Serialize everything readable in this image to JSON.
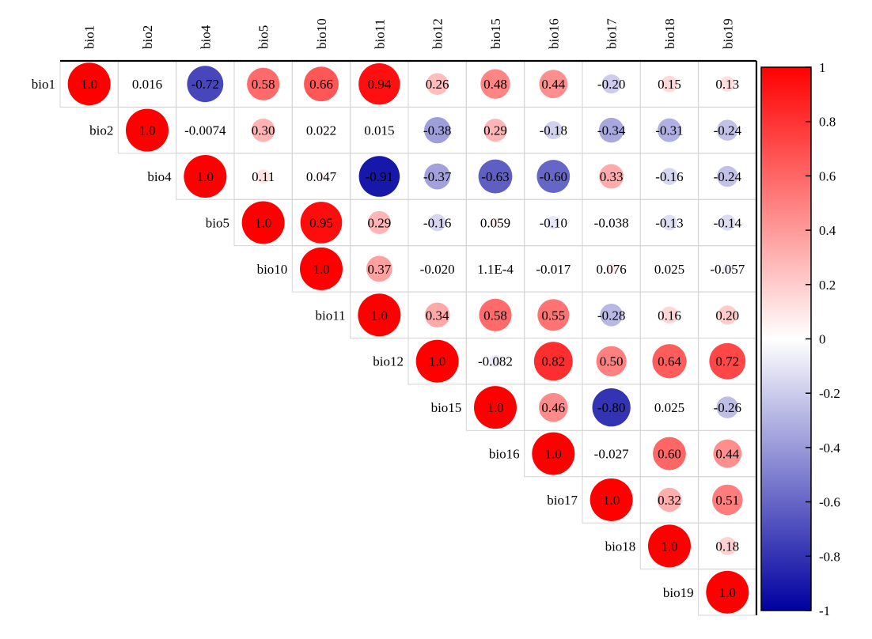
{
  "chart_data": {
    "type": "heatmap",
    "title": "",
    "xlabel": "",
    "ylabel": "",
    "variables": [
      "bio1",
      "bio2",
      "bio4",
      "bio5",
      "bio10",
      "bio11",
      "bio12",
      "bio15",
      "bio16",
      "bio17",
      "bio18",
      "bio19"
    ],
    "layout": "upper-triangle",
    "diagonal_labels": true,
    "circles_scale_with_magnitude": true,
    "cells": [
      {
        "row": "bio1",
        "col": "bio1",
        "value": 1.0,
        "label": "1.0"
      },
      {
        "row": "bio1",
        "col": "bio2",
        "value": 0.016,
        "label": "0.016"
      },
      {
        "row": "bio1",
        "col": "bio4",
        "value": -0.72,
        "label": "-0.72"
      },
      {
        "row": "bio1",
        "col": "bio5",
        "value": 0.58,
        "label": "0.58"
      },
      {
        "row": "bio1",
        "col": "bio10",
        "value": 0.66,
        "label": "0.66"
      },
      {
        "row": "bio1",
        "col": "bio11",
        "value": 0.94,
        "label": "0.94"
      },
      {
        "row": "bio1",
        "col": "bio12",
        "value": 0.26,
        "label": "0.26"
      },
      {
        "row": "bio1",
        "col": "bio15",
        "value": 0.48,
        "label": "0.48"
      },
      {
        "row": "bio1",
        "col": "bio16",
        "value": 0.44,
        "label": "0.44"
      },
      {
        "row": "bio1",
        "col": "bio17",
        "value": -0.2,
        "label": "-0.20"
      },
      {
        "row": "bio1",
        "col": "bio18",
        "value": 0.15,
        "label": "0.15"
      },
      {
        "row": "bio1",
        "col": "bio19",
        "value": 0.13,
        "label": "0.13"
      },
      {
        "row": "bio2",
        "col": "bio2",
        "value": 1.0,
        "label": "1.0"
      },
      {
        "row": "bio2",
        "col": "bio4",
        "value": -0.0074,
        "label": "-0.0074"
      },
      {
        "row": "bio2",
        "col": "bio5",
        "value": 0.3,
        "label": "0.30"
      },
      {
        "row": "bio2",
        "col": "bio10",
        "value": 0.022,
        "label": "0.022"
      },
      {
        "row": "bio2",
        "col": "bio11",
        "value": 0.015,
        "label": "0.015"
      },
      {
        "row": "bio2",
        "col": "bio12",
        "value": -0.38,
        "label": "-0.38"
      },
      {
        "row": "bio2",
        "col": "bio15",
        "value": 0.29,
        "label": "0.29"
      },
      {
        "row": "bio2",
        "col": "bio16",
        "value": -0.18,
        "label": "-0.18"
      },
      {
        "row": "bio2",
        "col": "bio17",
        "value": -0.34,
        "label": "-0.34"
      },
      {
        "row": "bio2",
        "col": "bio18",
        "value": -0.31,
        "label": "-0.31"
      },
      {
        "row": "bio2",
        "col": "bio19",
        "value": -0.24,
        "label": "-0.24"
      },
      {
        "row": "bio4",
        "col": "bio4",
        "value": 1.0,
        "label": "1.0"
      },
      {
        "row": "bio4",
        "col": "bio5",
        "value": 0.11,
        "label": "0.11"
      },
      {
        "row": "bio4",
        "col": "bio10",
        "value": 0.047,
        "label": "0.047"
      },
      {
        "row": "bio4",
        "col": "bio11",
        "value": -0.91,
        "label": "-0.91"
      },
      {
        "row": "bio4",
        "col": "bio12",
        "value": -0.37,
        "label": "-0.37"
      },
      {
        "row": "bio4",
        "col": "bio15",
        "value": -0.63,
        "label": "-0.63"
      },
      {
        "row": "bio4",
        "col": "bio16",
        "value": -0.6,
        "label": "-0.60"
      },
      {
        "row": "bio4",
        "col": "bio17",
        "value": 0.33,
        "label": "0.33"
      },
      {
        "row": "bio4",
        "col": "bio18",
        "value": -0.16,
        "label": "-0.16"
      },
      {
        "row": "bio4",
        "col": "bio19",
        "value": -0.24,
        "label": "-0.24"
      },
      {
        "row": "bio5",
        "col": "bio5",
        "value": 1.0,
        "label": "1.0"
      },
      {
        "row": "bio5",
        "col": "bio10",
        "value": 0.95,
        "label": "0.95"
      },
      {
        "row": "bio5",
        "col": "bio11",
        "value": 0.29,
        "label": "0.29"
      },
      {
        "row": "bio5",
        "col": "bio12",
        "value": -0.16,
        "label": "-0.16"
      },
      {
        "row": "bio5",
        "col": "bio15",
        "value": 0.059,
        "label": "0.059"
      },
      {
        "row": "bio5",
        "col": "bio16",
        "value": -0.1,
        "label": "-0.10"
      },
      {
        "row": "bio5",
        "col": "bio17",
        "value": -0.038,
        "label": "-0.038"
      },
      {
        "row": "bio5",
        "col": "bio18",
        "value": -0.13,
        "label": "-0.13"
      },
      {
        "row": "bio5",
        "col": "bio19",
        "value": -0.14,
        "label": "-0.14"
      },
      {
        "row": "bio10",
        "col": "bio10",
        "value": 1.0,
        "label": "1.0"
      },
      {
        "row": "bio10",
        "col": "bio11",
        "value": 0.37,
        "label": "0.37"
      },
      {
        "row": "bio10",
        "col": "bio12",
        "value": -0.02,
        "label": "-0.020"
      },
      {
        "row": "bio10",
        "col": "bio15",
        "value": 0.00011,
        "label": "1.1E-4"
      },
      {
        "row": "bio10",
        "col": "bio16",
        "value": -0.017,
        "label": "-0.017"
      },
      {
        "row": "bio10",
        "col": "bio17",
        "value": 0.076,
        "label": "0.076"
      },
      {
        "row": "bio10",
        "col": "bio18",
        "value": 0.025,
        "label": "0.025"
      },
      {
        "row": "bio10",
        "col": "bio19",
        "value": -0.057,
        "label": "-0.057"
      },
      {
        "row": "bio11",
        "col": "bio11",
        "value": 1.0,
        "label": "1.0"
      },
      {
        "row": "bio11",
        "col": "bio12",
        "value": 0.34,
        "label": "0.34"
      },
      {
        "row": "bio11",
        "col": "bio15",
        "value": 0.58,
        "label": "0.58"
      },
      {
        "row": "bio11",
        "col": "bio16",
        "value": 0.55,
        "label": "0.55"
      },
      {
        "row": "bio11",
        "col": "bio17",
        "value": -0.28,
        "label": "-0.28"
      },
      {
        "row": "bio11",
        "col": "bio18",
        "value": 0.16,
        "label": "0.16"
      },
      {
        "row": "bio11",
        "col": "bio19",
        "value": 0.2,
        "label": "0.20"
      },
      {
        "row": "bio12",
        "col": "bio12",
        "value": 1.0,
        "label": "1.0"
      },
      {
        "row": "bio12",
        "col": "bio15",
        "value": -0.082,
        "label": "-0.082"
      },
      {
        "row": "bio12",
        "col": "bio16",
        "value": 0.82,
        "label": "0.82"
      },
      {
        "row": "bio12",
        "col": "bio17",
        "value": 0.5,
        "label": "0.50"
      },
      {
        "row": "bio12",
        "col": "bio18",
        "value": 0.64,
        "label": "0.64"
      },
      {
        "row": "bio12",
        "col": "bio19",
        "value": 0.72,
        "label": "0.72"
      },
      {
        "row": "bio15",
        "col": "bio15",
        "value": 1.0,
        "label": "1.0"
      },
      {
        "row": "bio15",
        "col": "bio16",
        "value": 0.46,
        "label": "0.46"
      },
      {
        "row": "bio15",
        "col": "bio17",
        "value": -0.8,
        "label": "-0.80"
      },
      {
        "row": "bio15",
        "col": "bio18",
        "value": 0.025,
        "label": "0.025"
      },
      {
        "row": "bio15",
        "col": "bio19",
        "value": -0.26,
        "label": "-0.26"
      },
      {
        "row": "bio16",
        "col": "bio16",
        "value": 1.0,
        "label": "1.0"
      },
      {
        "row": "bio16",
        "col": "bio17",
        "value": -0.027,
        "label": "-0.027"
      },
      {
        "row": "bio16",
        "col": "bio18",
        "value": 0.6,
        "label": "0.60"
      },
      {
        "row": "bio16",
        "col": "bio19",
        "value": 0.44,
        "label": "0.44"
      },
      {
        "row": "bio17",
        "col": "bio17",
        "value": 1.0,
        "label": "1.0"
      },
      {
        "row": "bio17",
        "col": "bio18",
        "value": 0.32,
        "label": "0.32"
      },
      {
        "row": "bio17",
        "col": "bio19",
        "value": 0.51,
        "label": "0.51"
      },
      {
        "row": "bio18",
        "col": "bio18",
        "value": 1.0,
        "label": "1.0"
      },
      {
        "row": "bio18",
        "col": "bio19",
        "value": 0.18,
        "label": "0.18"
      },
      {
        "row": "bio19",
        "col": "bio19",
        "value": 1.0,
        "label": "1.0"
      }
    ],
    "colorbar": {
      "range": [
        -1,
        1
      ],
      "ticks": [
        1,
        0.8,
        0.6,
        0.4,
        0.2,
        0,
        -0.2,
        -0.4,
        -0.6,
        -0.8,
        -1
      ],
      "tick_labels": [
        "1",
        "0.8",
        "0.6",
        "0.4",
        "0.2",
        "0",
        "-0.2",
        "-0.4",
        "-0.6",
        "-0.8",
        "-1"
      ],
      "colors": {
        "negative": "#0000a0",
        "zero": "#ffffff",
        "positive": "#ff0000"
      },
      "placement": "right"
    },
    "grid": true
  }
}
